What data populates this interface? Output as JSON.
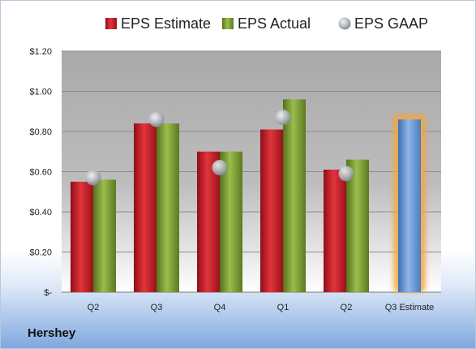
{
  "company": "Hershey",
  "chart_data": {
    "type": "bar",
    "categories": [
      "Q2",
      "Q3",
      "Q4",
      "Q1",
      "Q2",
      "Q3 Estimate"
    ],
    "series": [
      {
        "name": "EPS Estimate",
        "values": [
          0.55,
          0.84,
          0.7,
          0.81,
          0.61,
          null
        ],
        "color": "#c0202a"
      },
      {
        "name": "EPS Actual",
        "values": [
          0.56,
          0.84,
          0.7,
          0.96,
          0.66,
          null
        ],
        "color": "#7a9a2e"
      },
      {
        "name": "EPS GAAP",
        "values": [
          0.57,
          0.86,
          0.62,
          0.87,
          0.59,
          null
        ],
        "color": "#b8bcc4"
      },
      {
        "name": "",
        "values": [
          null,
          null,
          null,
          null,
          null,
          0.86
        ],
        "color": "#5f90cf"
      }
    ],
    "highlight_color": "#f4a640",
    "yticks": [
      "$-",
      "$0.20",
      "$0.40",
      "$0.60",
      "$0.80",
      "$1.00",
      "$1.20"
    ],
    "ylim": [
      0,
      1.2
    ],
    "grid": true,
    "legend_position": "top"
  }
}
